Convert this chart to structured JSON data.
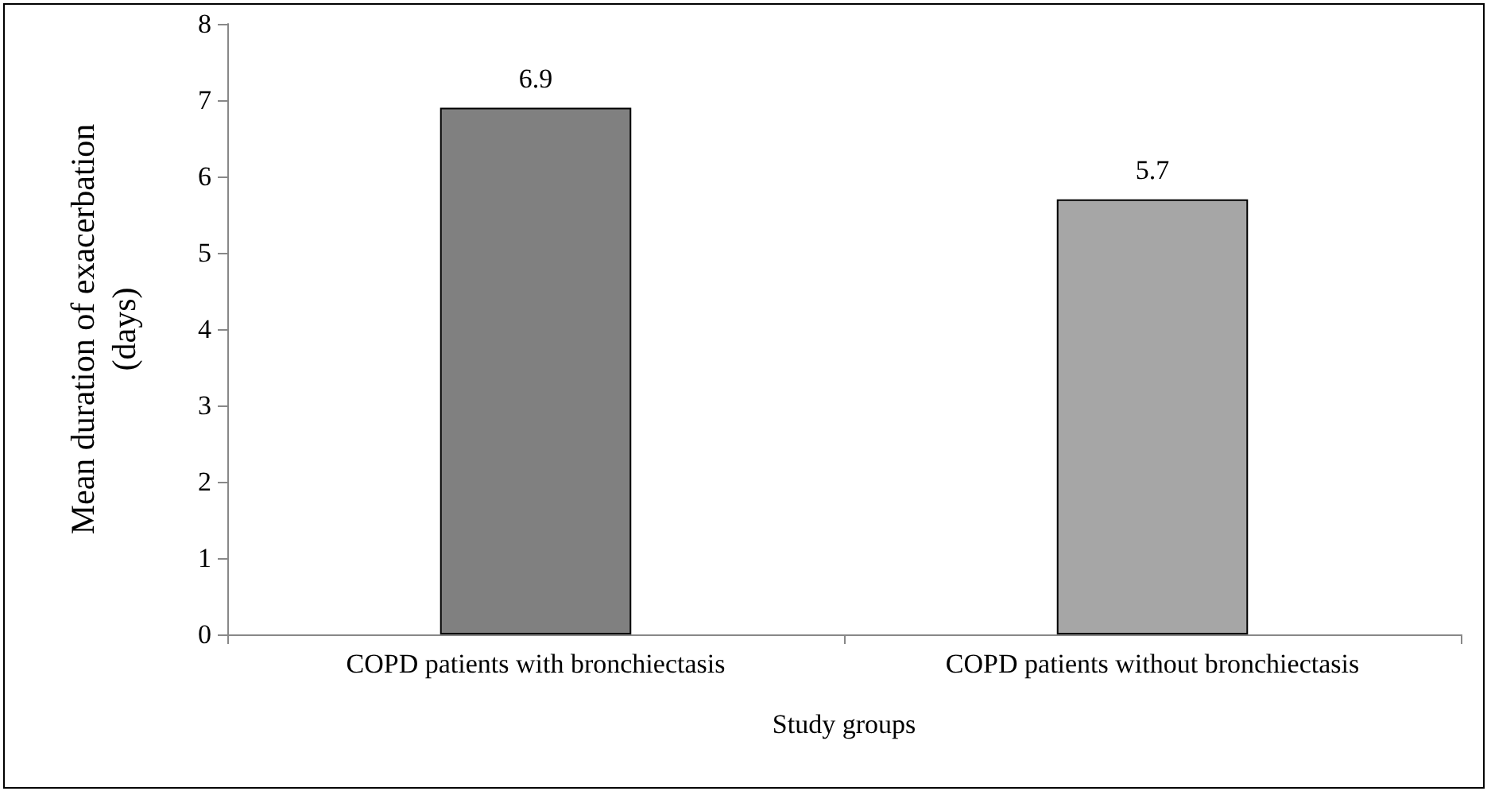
{
  "chart_data": {
    "type": "bar",
    "xlabel": "Study groups",
    "ylabel": "Mean duration of exacerbation\n(days)",
    "categories": [
      "COPD patients with bronchiectasis",
      "COPD patients without bronchiectasis"
    ],
    "values": [
      6.9,
      5.7
    ],
    "colors": [
      "#808080",
      "#a6a6a6"
    ],
    "ylim": [
      0,
      8
    ],
    "yticks": [
      0,
      1,
      2,
      3,
      4,
      5,
      6,
      7,
      8
    ],
    "grid": false,
    "data_labels": true
  }
}
